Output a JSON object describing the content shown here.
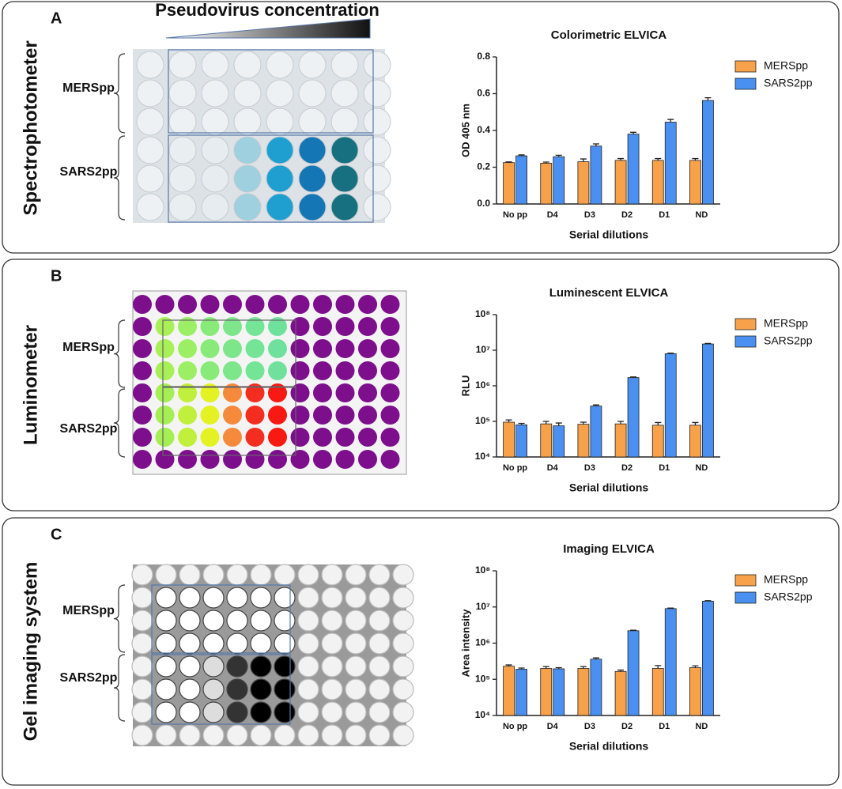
{
  "panels": [
    {
      "letter": "A",
      "instrument": "Spectrophotometer",
      "header": "Pseudovirus concentration",
      "rows": [
        "MERSpp",
        "SARS2pp"
      ]
    },
    {
      "letter": "B",
      "instrument": "Luminometer",
      "rows": [
        "MERSpp",
        "SARS2pp"
      ]
    },
    {
      "letter": "C",
      "instrument": "Gel imaging system",
      "rows": [
        "MERSpp",
        "SARS2pp"
      ]
    }
  ],
  "chart_data": [
    {
      "type": "bar",
      "title": "Colorimetric ELVICA",
      "x_label": "Serial dilutions",
      "y_label": "OD 405 nm",
      "categories": [
        "No pp",
        "D4",
        "D3",
        "D2",
        "D1",
        "ND"
      ],
      "series": [
        {
          "name": "MERSpp",
          "color": "#f7a14a",
          "values": [
            0.225,
            0.222,
            0.23,
            0.237,
            0.237,
            0.237
          ],
          "errors": [
            0.004,
            0.006,
            0.015,
            0.01,
            0.01,
            0.01
          ]
        },
        {
          "name": "SARS2pp",
          "color": "#4a90f0",
          "values": [
            0.262,
            0.257,
            0.315,
            0.38,
            0.445,
            0.563
          ],
          "errors": [
            0.005,
            0.008,
            0.012,
            0.01,
            0.015,
            0.015
          ]
        }
      ],
      "ylim": [
        0,
        0.8
      ],
      "yticks": [
        {
          "value": 0,
          "label": "0.0"
        },
        0.2,
        0.4,
        0.6,
        0.8
      ],
      "log_scale": false,
      "legend": "right"
    },
    {
      "type": "bar",
      "title": "Luminescent ELVICA",
      "x_label": "Serial dilutions",
      "y_label": "RLU",
      "categories": [
        "No pp",
        "D4",
        "D3",
        "D2",
        "D1",
        "ND"
      ],
      "series": [
        {
          "name": "MERSpp",
          "color": "#f7a14a",
          "values": [
            95000,
            85000,
            83000,
            85000,
            78000,
            78000
          ],
          "errors": [
            15000,
            15000,
            12000,
            15000,
            15000,
            15000
          ]
        },
        {
          "name": "SARS2pp",
          "color": "#4a90f0",
          "values": [
            80000,
            75000,
            270000,
            1700000,
            8000000,
            15000000
          ],
          "errors": [
            8000,
            15000,
            20000,
            80000,
            300000,
            500000
          ]
        }
      ],
      "ylim": [
        10000,
        100000000
      ],
      "yticks": [
        {
          "value": 10000,
          "label": "10⁴"
        },
        {
          "value": 100000,
          "label": "10⁵"
        },
        {
          "value": 1000000,
          "label": "10⁶"
        },
        {
          "value": 10000000,
          "label": "10⁷"
        },
        {
          "value": 100000000,
          "label": "10⁸"
        }
      ],
      "log_scale": true,
      "legend": "right"
    },
    {
      "type": "bar",
      "title": "Imaging ELVICA",
      "x_label": "Serial dilutions",
      "y_label": "Area intensity",
      "categories": [
        "No pp",
        "D4",
        "D3",
        "D2",
        "D1",
        "ND"
      ],
      "series": [
        {
          "name": "MERSpp",
          "color": "#f7a14a",
          "values": [
            230000,
            200000,
            200000,
            165000,
            200000,
            210000
          ],
          "errors": [
            20000,
            25000,
            25000,
            15000,
            40000,
            25000
          ]
        },
        {
          "name": "SARS2pp",
          "color": "#4a90f0",
          "values": [
            190000,
            195000,
            360000,
            2200000,
            9000000,
            14500000
          ],
          "errors": [
            15000,
            15000,
            30000,
            80000,
            300000,
            400000
          ]
        }
      ],
      "ylim": [
        10000,
        100000000
      ],
      "yticks": [
        {
          "value": 10000,
          "label": "10⁴"
        },
        {
          "value": 100000,
          "label": "10⁵"
        },
        {
          "value": 1000000,
          "label": "10⁶"
        },
        {
          "value": 10000000,
          "label": "10⁷"
        },
        {
          "value": 100000000,
          "label": "10⁸"
        }
      ],
      "log_scale": true,
      "legend": "right"
    }
  ]
}
